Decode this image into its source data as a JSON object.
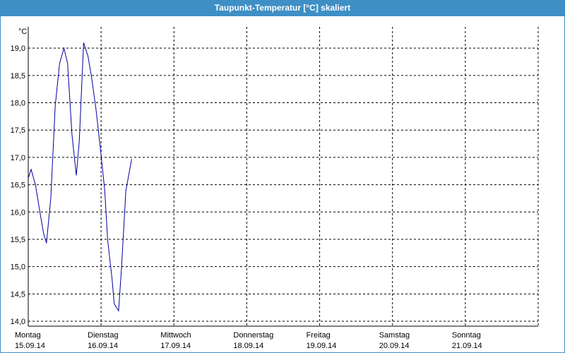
{
  "chart_data": {
    "type": "line",
    "title": "Taupunkt-Temperatur [°C] skaliert",
    "y_unit": "°C",
    "xlim": [
      0,
      7
    ],
    "xticks": [
      {
        "value": 0,
        "label": "Montag"
      },
      {
        "value": 1,
        "label": "Dienstag"
      },
      {
        "value": 2,
        "label": "Mittwoch"
      },
      {
        "value": 3,
        "label": "Donnerstag"
      },
      {
        "value": 4,
        "label": "Freitag"
      },
      {
        "value": 5,
        "label": "Samstag"
      },
      {
        "value": 6,
        "label": "Sonntag"
      }
    ],
    "xtick_dates": [
      "15.09.14",
      "16.09.14",
      "17.09.14",
      "18.09.14",
      "19.09.14",
      "20.09.14",
      "21.09.14"
    ],
    "ylim": [
      13.91,
      19.39
    ],
    "yticks": [
      {
        "value": 14,
        "label": "14,0"
      },
      {
        "value": 14.5,
        "label": "14,5"
      },
      {
        "value": 15,
        "label": "15,0"
      },
      {
        "value": 15.5,
        "label": "15,5"
      },
      {
        "value": 16,
        "label": "16,0"
      },
      {
        "value": 16.5,
        "label": "16,5"
      },
      {
        "value": 17,
        "label": "17,0"
      },
      {
        "value": 17.5,
        "label": "17,5"
      },
      {
        "value": 18,
        "label": "18,0"
      },
      {
        "value": 18.5,
        "label": "18,5"
      },
      {
        "value": 19,
        "label": "19,0"
      }
    ],
    "grid": true,
    "series": [
      {
        "color": "#0000a0",
        "x": [
          0,
          0.04,
          0.1,
          0.16,
          0.21,
          0.25,
          0.31,
          0.37,
          0.43,
          0.49,
          0.54,
          0.6,
          0.66,
          0.7,
          0.76,
          0.82,
          0.87,
          0.93,
          0.99,
          1.05,
          1.09,
          1.15,
          1.18,
          1.24,
          1.28,
          1.34,
          1.42
        ],
        "values": [
          16.62,
          16.78,
          16.49,
          16.0,
          15.61,
          15.43,
          16.26,
          17.94,
          18.72,
          19.0,
          18.72,
          17.42,
          16.67,
          17.29,
          19.1,
          18.85,
          18.46,
          17.88,
          17.17,
          16.39,
          15.49,
          14.78,
          14.32,
          14.19,
          14.97,
          16.39,
          16.97
        ]
      }
    ]
  }
}
